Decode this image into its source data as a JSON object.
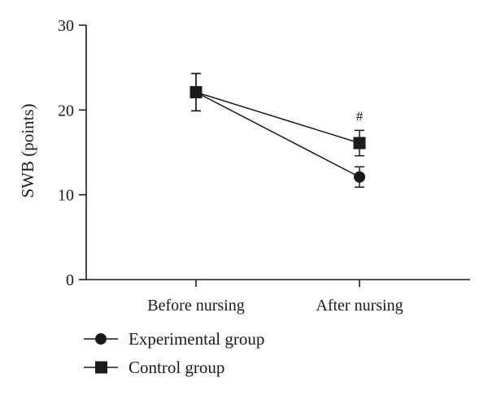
{
  "chart_data": {
    "type": "line",
    "title": "",
    "xlabel": "",
    "ylabel": "SWB (points)",
    "categories": [
      "Before nursing",
      "After nursing"
    ],
    "ylim": [
      0,
      30
    ],
    "yticks": [
      0,
      10,
      20,
      30
    ],
    "grid": false,
    "legend_position": "bottom-left",
    "series": [
      {
        "name": "Experimental group",
        "marker": "circle",
        "values": [
          22.1,
          12.1
        ],
        "error": [
          2.2,
          1.2
        ]
      },
      {
        "name": "Control group",
        "marker": "square",
        "values": [
          22.1,
          16.1
        ],
        "error": [
          2.2,
          1.5
        ]
      }
    ],
    "annotations": [
      {
        "text": "#",
        "category": "After nursing",
        "series": "Control group"
      }
    ],
    "colors": {
      "line": "#1a1a1a",
      "marker": "#1a1a1a"
    }
  }
}
